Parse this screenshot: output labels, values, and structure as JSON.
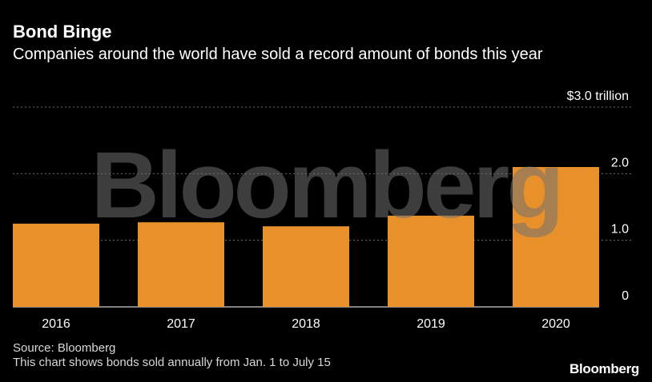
{
  "header": {
    "title": "Bond Binge",
    "subtitle": "Companies around the world have sold a record amount of bonds this year"
  },
  "footer": {
    "source": "Source: Bloomberg",
    "note": "This chart shows bonds sold annually from Jan. 1 to July 15",
    "brand": "Bloomberg"
  },
  "watermark": "Bloomberg",
  "colors": {
    "background": "#000000",
    "bar": "#e8912a",
    "grid": "#6b6b6b",
    "text": "#ffffff",
    "watermark": "#707070"
  },
  "chart_data": {
    "type": "bar",
    "categories": [
      "2016",
      "2017",
      "2018",
      "2019",
      "2020"
    ],
    "values": [
      1.25,
      1.27,
      1.21,
      1.37,
      2.1
    ],
    "ylim": [
      0,
      3.0
    ],
    "y_ticks": [
      {
        "value": 0,
        "label": "0"
      },
      {
        "value": 1.0,
        "label": "1.0"
      },
      {
        "value": 2.0,
        "label": "2.0"
      },
      {
        "value": 3.0,
        "label": "$3.0 trillion"
      }
    ],
    "grid": true,
    "y_axis_position": "right"
  }
}
